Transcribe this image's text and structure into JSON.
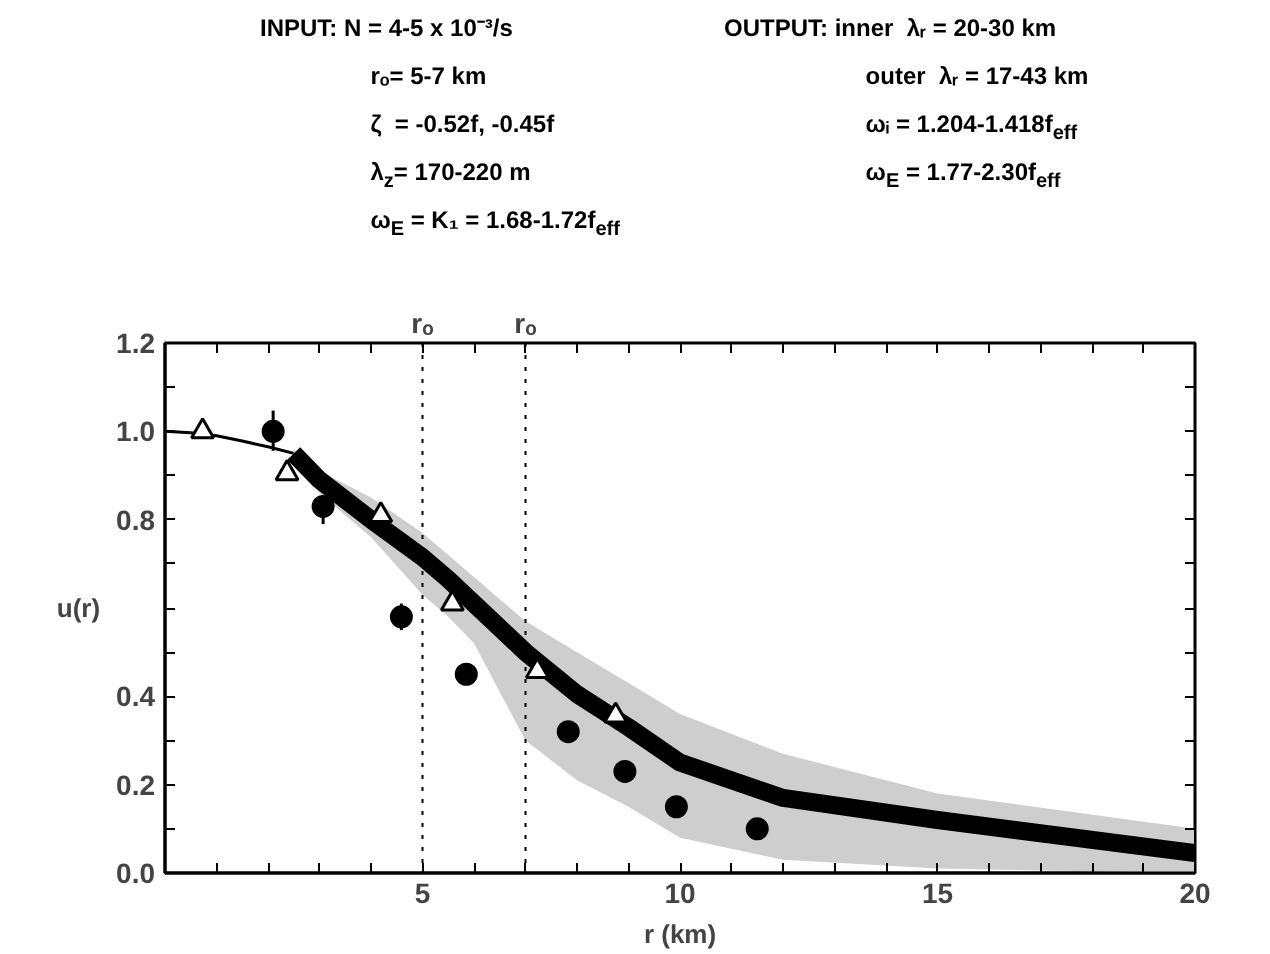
{
  "chart_data": {
    "type": "line",
    "annotations": [
      "INPUT: N = 4-5 x 10⁻³/s\nrₒ= 5-7 km\nζ  = -0.52f, -0.45f\nλ$_{z}$= 170-220 m\nω$_{E}$ = K₁ = 1.68-1.72f$_{eff}$",
      "OUTPUT: inner  λᵣ = 20-30 km\nouter  λᵣ = 17-43 km\nωᵢ = 1.204-1.418f$_{eff}$\nω$_{E}$ = 1.77-2.30f$_{eff}$"
    ],
    "xlabel": "r (km)",
    "ylabel": "u(r)",
    "xlim": [
      0,
      20
    ],
    "ylim": [
      0,
      1.2
    ],
    "xticks": [
      {
        "value": 1,
        "label": null
      },
      {
        "value": 2,
        "label": null
      },
      {
        "value": 3,
        "label": null
      },
      {
        "value": 4,
        "label": null
      },
      5,
      {
        "value": 6,
        "label": null
      },
      {
        "value": 7,
        "label": null
      },
      {
        "value": 8,
        "label": null
      },
      {
        "value": 9,
        "label": null
      },
      10,
      {
        "value": 11,
        "label": null
      },
      {
        "value": 12,
        "label": null
      },
      {
        "value": 13,
        "label": null
      },
      {
        "value": 14,
        "label": null
      },
      15,
      {
        "value": 16,
        "label": null
      },
      {
        "value": 17,
        "label": null
      },
      {
        "value": 18,
        "label": null
      },
      {
        "value": 19,
        "label": null
      },
      20
    ],
    "yticks": [
      {
        "value": 0,
        "label": "0.0"
      },
      {
        "value": 0.1,
        "label": null
      },
      {
        "value": 0.2,
        "label": "0.2"
      },
      {
        "value": 0.3,
        "label": null
      },
      {
        "value": 0.4,
        "label": "0.4"
      },
      {
        "value": 0.5,
        "label": null
      },
      {
        "value": 0.6,
        "label": null
      },
      {
        "value": 0.7,
        "label": null
      },
      {
        "value": 0.8,
        "label": "0.8"
      },
      {
        "value": 0.9,
        "label": null
      },
      {
        "value": 1.0,
        "label": "1.0"
      },
      {
        "value": 1.1,
        "label": null
      },
      {
        "value": 1.2,
        "label": "1.2"
      }
    ],
    "grid": false,
    "ref_lines": [
      {
        "axis": "x",
        "value": 5,
        "label": "rₒ",
        "line_style": "dotted"
      },
      {
        "axis": "x",
        "value": 7,
        "label": "rₒ",
        "line_style": "dotted"
      }
    ],
    "series": [
      {
        "color": "#000000",
        "marker": "none",
        "x": [
          0,
          0.5,
          1,
          1.5,
          2,
          2.5
        ],
        "values": [
          1.0,
          0.997,
          0.99,
          0.978,
          0.965,
          0.95
        ]
      },
      {
        "color": "#000000",
        "marker": "none",
        "x": [
          2.5,
          3,
          4,
          5,
          5.5,
          6,
          6.5,
          7,
          8,
          9,
          10,
          12,
          15,
          20
        ],
        "values": [
          0.95,
          0.89,
          0.8,
          0.715,
          0.665,
          0.61,
          0.555,
          0.5,
          0.405,
          0.33,
          0.25,
          0.17,
          0.12,
          0.045
        ],
        "lower": [
          0.94,
          0.86,
          0.76,
          0.63,
          0.58,
          0.52,
          0.41,
          0.3,
          0.21,
          0.15,
          0.08,
          0.03,
          0.01,
          0.0
        ],
        "upper": [
          0.96,
          0.91,
          0.85,
          0.77,
          0.72,
          0.67,
          0.62,
          0.57,
          0.5,
          0.43,
          0.36,
          0.27,
          0.18,
          0.1
        ]
      },
      {
        "type": "scatter",
        "color": "#000000",
        "marker": "triangle",
        "x": [
          0.73,
          2.37,
          4.19,
          5.58,
          7.23,
          8.75
        ],
        "values": [
          1.0,
          0.905,
          0.81,
          0.61,
          0.457,
          0.356
        ]
      },
      {
        "type": "scatter",
        "color": "#000000",
        "marker": "circle",
        "x": [
          2.1,
          3.07,
          4.59,
          5.85,
          7.83,
          8.93,
          9.93,
          11.5
        ],
        "values": [
          1.0,
          0.83,
          0.58,
          0.45,
          0.32,
          0.23,
          0.15,
          0.1
        ],
        "errors": [
          [
            0.956,
            1.047
          ],
          [
            0.79,
            0.86
          ],
          [
            0.55,
            0.61
          ],
          null,
          null,
          null,
          null,
          null
        ]
      }
    ]
  }
}
